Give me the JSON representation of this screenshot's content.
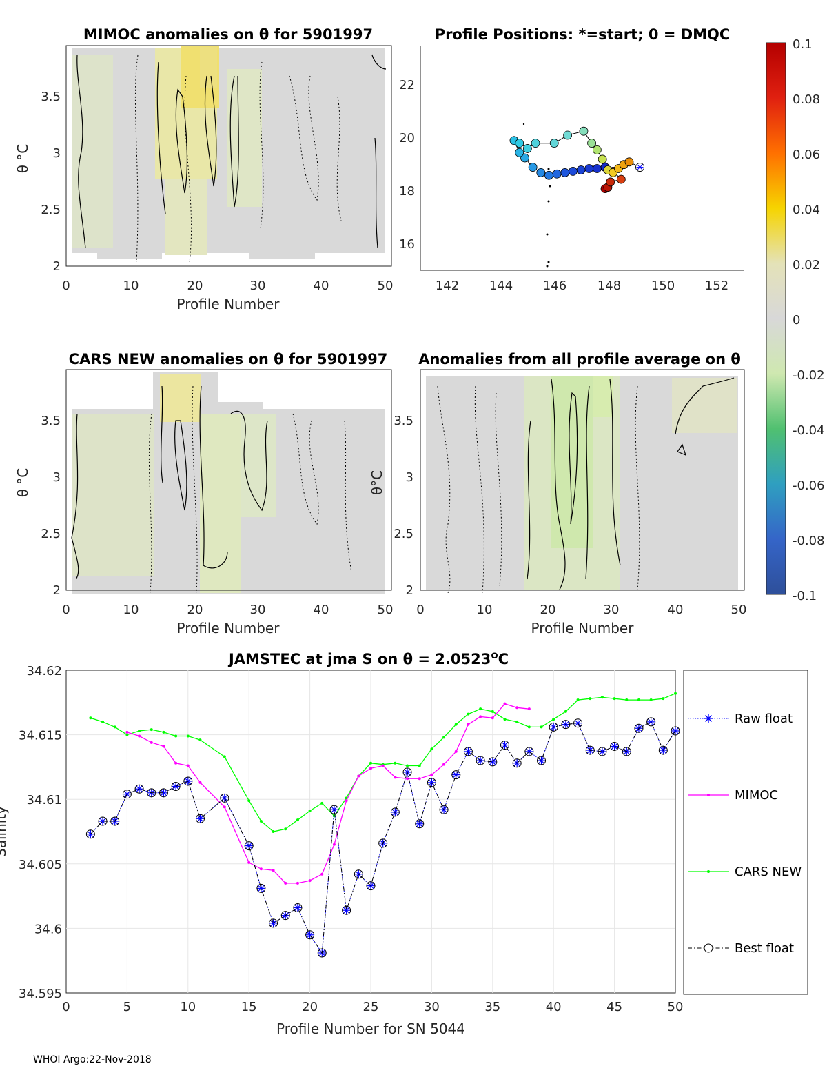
{
  "footer": "WHOI Argo:22-Nov-2018",
  "panels": {
    "mimoc": {
      "title": "MIMOC anomalies on θ  for 5901997",
      "xlabel": "Profile Number",
      "ylabel": "θ °C",
      "xticks": [
        "0",
        "10",
        "20",
        "30",
        "40",
        "50"
      ],
      "yticks": [
        "2",
        "2.5",
        "3",
        "3.5"
      ],
      "xlim": [
        0,
        50
      ],
      "ylim": [
        1.98,
        3.9
      ]
    },
    "positions": {
      "title": "Profile Positions: *=start; 0 = DMQC",
      "xticks": [
        "142",
        "144",
        "146",
        "148",
        "150",
        "152"
      ],
      "yticks": [
        "16",
        "18",
        "20",
        "22"
      ],
      "xlim": [
        141.1,
        153.2
      ],
      "ylim": [
        15.2,
        23.6
      ]
    },
    "cars": {
      "title": "CARS NEW anomalies on θ for 5901997",
      "xlabel": "Profile Number",
      "ylabel": "θ °C",
      "xticks": [
        "0",
        "10",
        "20",
        "30",
        "40",
        "50"
      ],
      "yticks": [
        "2",
        "2.5",
        "3",
        "3.5"
      ],
      "xlim": [
        0,
        50
      ],
      "ylim": [
        1.98,
        3.9
      ]
    },
    "allavg": {
      "title": "Anomalies from all profile average on θ",
      "xlabel": "Profile Number",
      "ylabel": "θ°C",
      "xticks": [
        "0",
        "10",
        "20",
        "30",
        "40",
        "50"
      ],
      "yticks": [
        "2",
        "2.5",
        "3",
        "3.5"
      ],
      "xlim": [
        0,
        50
      ],
      "ylim": [
        1.98,
        3.9
      ]
    },
    "colorbar": {
      "ticks": [
        "0.1",
        "0.08",
        "0.06",
        "0.04",
        "0.02",
        "0",
        "-0.02",
        "-0.04",
        "-0.06",
        "-0.08",
        "-0.1"
      ],
      "range": [
        -0.1,
        0.1
      ]
    }
  },
  "chart_data": {
    "type": "line",
    "title": "JAMSTEC at jma S on θ = 2.0523",
    "title_sup": "o",
    "title_unit": "C",
    "xlabel": "Profile Number for SN 5044",
    "ylabel": "Salinity",
    "xlim": [
      0,
      50
    ],
    "ylim": [
      34.595,
      34.62
    ],
    "xticks": [
      "0",
      "5",
      "10",
      "15",
      "20",
      "25",
      "30",
      "35",
      "40",
      "45",
      "50"
    ],
    "yticks": [
      "34.595",
      "34.6",
      "34.605",
      "34.61",
      "34.615",
      "34.62"
    ],
    "grid": true,
    "legend_position": "right",
    "series": [
      {
        "name": "Raw float",
        "color": "#0000ff",
        "x": [
          2,
          3,
          4,
          5,
          6,
          7,
          8,
          9,
          10,
          11,
          13,
          15,
          16,
          17,
          18,
          19,
          20,
          21,
          22,
          23,
          24,
          25,
          26,
          27,
          28,
          29,
          30,
          31,
          32,
          33,
          34,
          35,
          36,
          37,
          38,
          39,
          40,
          41,
          42,
          43,
          44,
          45,
          46,
          47,
          48,
          49,
          50
        ],
        "values": [
          34.6073,
          34.6083,
          34.6083,
          34.6104,
          34.6108,
          34.6105,
          34.6105,
          34.611,
          34.6114,
          34.6085,
          34.6101,
          34.6064,
          34.6031,
          34.6004,
          34.601,
          34.6016,
          34.5995,
          34.5981,
          34.6092,
          34.6014,
          34.6042,
          34.6033,
          34.6066,
          34.609,
          34.6121,
          34.6081,
          34.6113,
          34.6092,
          34.6119,
          34.6137,
          34.613,
          34.6129,
          34.6142,
          34.6128,
          34.6137,
          34.613,
          34.6156,
          34.6158,
          34.6159,
          34.6138,
          34.6137,
          34.6141,
          34.6137,
          34.6155,
          34.616,
          34.6138,
          34.6153
        ]
      },
      {
        "name": "MIMOC",
        "color": "#ff00ff",
        "x": [
          5,
          6,
          7,
          8,
          9,
          10,
          11,
          13,
          15,
          16,
          17,
          18,
          19,
          20,
          21,
          22,
          23,
          24,
          25,
          26,
          27,
          28,
          29,
          30,
          31,
          32,
          33,
          34,
          35,
          36,
          37,
          38
        ],
        "values": [
          34.6152,
          34.6149,
          34.6144,
          34.6141,
          34.6128,
          34.6126,
          34.6113,
          34.6094,
          34.6051,
          34.6046,
          34.6045,
          34.6035,
          34.6035,
          34.6037,
          34.6042,
          34.6065,
          34.6099,
          34.6118,
          34.6124,
          34.6126,
          34.6117,
          34.6116,
          34.6116,
          34.6119,
          34.6127,
          34.6137,
          34.6158,
          34.6164,
          34.6163,
          34.6174,
          34.6171,
          34.617
        ]
      },
      {
        "name": "CARS NEW",
        "color": "#00ff00",
        "x": [
          2,
          3,
          4,
          5,
          6,
          7,
          8,
          9,
          10,
          11,
          13,
          15,
          16,
          17,
          18,
          19,
          20,
          21,
          22,
          23,
          24,
          25,
          26,
          27,
          28,
          29,
          30,
          31,
          32,
          33,
          34,
          35,
          36,
          37,
          38,
          39,
          40,
          41,
          42,
          43,
          44,
          45,
          46,
          47,
          48,
          49,
          50
        ],
        "values": [
          34.6163,
          34.616,
          34.6156,
          34.615,
          34.6153,
          34.6154,
          34.6152,
          34.6149,
          34.6149,
          34.6146,
          34.6133,
          34.6099,
          34.6083,
          34.6075,
          34.6077,
          34.6084,
          34.6091,
          34.6097,
          34.6087,
          34.6101,
          34.6118,
          34.6128,
          34.6127,
          34.6128,
          34.6126,
          34.6126,
          34.6139,
          34.6148,
          34.6158,
          34.6166,
          34.617,
          34.6168,
          34.6162,
          34.616,
          34.6156,
          34.6156,
          34.6162,
          34.6168,
          34.6177,
          34.6178,
          34.6179,
          34.6178,
          34.6177,
          34.6177,
          34.6177,
          34.6178,
          34.6182
        ]
      },
      {
        "name": "Best float",
        "color": "#000000",
        "x": [
          2,
          3,
          4,
          5,
          6,
          7,
          8,
          9,
          10,
          11,
          13,
          15,
          16,
          17,
          18,
          19,
          20,
          21,
          22,
          23,
          24,
          25,
          26,
          27,
          28,
          29,
          30,
          31,
          32,
          33,
          34,
          35,
          36,
          37,
          38,
          39,
          40,
          41,
          42,
          43,
          44,
          45,
          46,
          47,
          48,
          49,
          50
        ],
        "values": [
          34.6073,
          34.6083,
          34.6083,
          34.6104,
          34.6108,
          34.6105,
          34.6105,
          34.611,
          34.6114,
          34.6085,
          34.6101,
          34.6064,
          34.6031,
          34.6004,
          34.601,
          34.6016,
          34.5995,
          34.5981,
          34.6092,
          34.6014,
          34.6042,
          34.6033,
          34.6066,
          34.609,
          34.6121,
          34.6081,
          34.6113,
          34.6092,
          34.6119,
          34.6137,
          34.613,
          34.6129,
          34.6142,
          34.6128,
          34.6137,
          34.613,
          34.6156,
          34.6158,
          34.6159,
          34.6138,
          34.6137,
          34.6141,
          34.6137,
          34.6155,
          34.616,
          34.6138,
          34.6153
        ]
      }
    ],
    "positions_track": {
      "start": [
        149.3,
        19.05
      ],
      "lon": [
        149.3,
        148.9,
        148.7,
        148.5,
        148.3,
        148.1,
        147.9,
        147.7,
        147.5,
        147.2,
        146.6,
        146.1,
        145.4,
        145.1,
        144.8,
        144.6,
        144.8,
        145.0,
        145.3,
        145.6,
        145.9,
        146.2,
        146.5,
        146.8,
        147.1,
        147.4,
        147.7,
        148.0,
        148.3,
        148.6,
        148.2,
        148.1,
        148.0
      ],
      "lat": [
        19.05,
        19.25,
        19.15,
        19.0,
        18.85,
        18.95,
        19.35,
        19.7,
        19.95,
        20.4,
        20.25,
        19.95,
        19.95,
        19.75,
        19.95,
        20.05,
        19.6,
        19.4,
        19.05,
        18.85,
        18.75,
        18.8,
        18.85,
        18.9,
        18.95,
        19.0,
        19.0,
        19.05,
        18.9,
        18.6,
        18.5,
        18.3,
        18.25
      ]
    }
  },
  "legend": [
    {
      "label": "Raw float"
    },
    {
      "label": "MIMOC"
    },
    {
      "label": "CARS NEW"
    },
    {
      "label": "Best float"
    }
  ]
}
